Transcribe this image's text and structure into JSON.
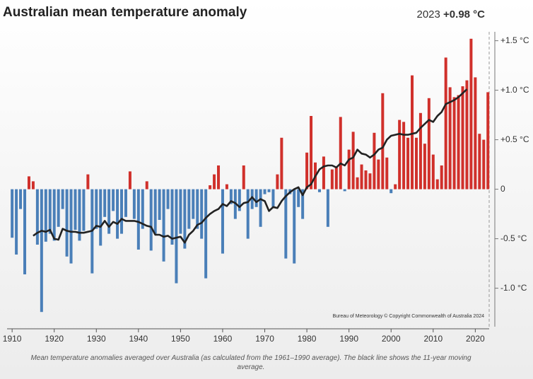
{
  "chart_data": {
    "type": "bar",
    "title": "Australian mean temperature anomaly",
    "latest_year_label": "2023",
    "latest_value_label": "+0.98 °C",
    "source": "Bureau of Meteorology © Copyright Commonwealth of Australia 2024",
    "caption": "Mean temperature anomalies averaged over Australia (as calculated from the 1961–1990 average). The black line shows the 11-year moving average.",
    "x": [
      1910,
      1911,
      1912,
      1913,
      1914,
      1915,
      1916,
      1917,
      1918,
      1919,
      1920,
      1921,
      1922,
      1923,
      1924,
      1925,
      1926,
      1927,
      1928,
      1929,
      1930,
      1931,
      1932,
      1933,
      1934,
      1935,
      1936,
      1937,
      1938,
      1939,
      1940,
      1941,
      1942,
      1943,
      1944,
      1945,
      1946,
      1947,
      1948,
      1949,
      1950,
      1951,
      1952,
      1953,
      1954,
      1955,
      1956,
      1957,
      1958,
      1959,
      1960,
      1961,
      1962,
      1963,
      1964,
      1965,
      1966,
      1967,
      1968,
      1969,
      1970,
      1971,
      1972,
      1973,
      1974,
      1975,
      1976,
      1977,
      1978,
      1979,
      1980,
      1981,
      1982,
      1983,
      1984,
      1985,
      1986,
      1987,
      1988,
      1989,
      1990,
      1991,
      1992,
      1993,
      1994,
      1995,
      1996,
      1997,
      1998,
      1999,
      2000,
      2001,
      2002,
      2003,
      2004,
      2005,
      2006,
      2007,
      2008,
      2009,
      2010,
      2011,
      2012,
      2013,
      2014,
      2015,
      2016,
      2017,
      2018,
      2019,
      2020,
      2021,
      2022,
      2023
    ],
    "values": [
      -0.49,
      -0.66,
      -0.2,
      -0.86,
      0.13,
      0.08,
      -0.56,
      -1.24,
      -0.53,
      -0.45,
      -0.52,
      -0.38,
      -0.2,
      -0.68,
      -0.75,
      -0.41,
      -0.52,
      -0.42,
      0.15,
      -0.85,
      -0.4,
      -0.57,
      -0.28,
      -0.45,
      -0.22,
      -0.5,
      -0.45,
      -0.28,
      0.18,
      -0.3,
      -0.61,
      -0.4,
      0.08,
      -0.62,
      -0.45,
      -0.31,
      -0.73,
      -0.2,
      -0.56,
      -0.95,
      -0.45,
      -0.6,
      -0.4,
      -0.3,
      -0.4,
      -0.5,
      -0.9,
      0.04,
      0.15,
      0.24,
      -0.65,
      0.05,
      -0.15,
      -0.3,
      -0.22,
      0.24,
      -0.5,
      -0.2,
      -0.18,
      -0.38,
      -0.05,
      -0.03,
      -0.18,
      0.15,
      0.52,
      -0.7,
      -0.05,
      -0.75,
      -0.18,
      -0.3,
      0.37,
      0.74,
      0.27,
      -0.03,
      0.33,
      -0.38,
      0.2,
      0.22,
      0.73,
      -0.02,
      0.4,
      0.58,
      0.12,
      0.25,
      0.19,
      0.16,
      0.57,
      0.3,
      0.97,
      0.32,
      -0.04,
      0.05,
      0.7,
      0.68,
      0.52,
      1.15,
      0.52,
      0.77,
      0.46,
      0.92,
      0.35,
      0.1,
      0.24,
      1.33,
      1.03,
      0.93,
      0.95,
      1.04,
      1.1,
      1.52,
      1.13,
      0.56,
      0.5,
      0.98
    ],
    "moving_average": [
      null,
      null,
      null,
      null,
      null,
      -0.47,
      -0.44,
      -0.42,
      -0.43,
      -0.41,
      -0.5,
      -0.51,
      -0.4,
      -0.42,
      -0.43,
      -0.43,
      -0.44,
      -0.44,
      -0.43,
      -0.42,
      -0.37,
      -0.38,
      -0.32,
      -0.38,
      -0.33,
      -0.35,
      -0.3,
      -0.32,
      -0.32,
      -0.32,
      -0.33,
      -0.35,
      -0.37,
      -0.38,
      -0.46,
      -0.46,
      -0.48,
      -0.47,
      -0.5,
      -0.49,
      -0.48,
      -0.54,
      -0.46,
      -0.42,
      -0.36,
      -0.34,
      -0.29,
      -0.25,
      -0.22,
      -0.2,
      -0.15,
      -0.17,
      -0.12,
      -0.14,
      -0.18,
      -0.14,
      -0.13,
      -0.08,
      -0.13,
      -0.1,
      -0.12,
      -0.22,
      -0.18,
      -0.19,
      -0.12,
      -0.07,
      -0.03,
      0,
      0.02,
      -0.06,
      0.02,
      0.05,
      0.13,
      0.2,
      0.23,
      0.24,
      0.24,
      0.22,
      0.26,
      0.24,
      0.3,
      0.32,
      0.4,
      0.36,
      0.35,
      0.32,
      0.35,
      0.4,
      0.42,
      0.5,
      0.54,
      0.55,
      0.56,
      0.55,
      0.55,
      0.56,
      0.57,
      0.62,
      0.66,
      0.7,
      0.68,
      0.74,
      0.78,
      0.86,
      0.88,
      0.9,
      0.93,
      0.97,
      1.01,
      null,
      null,
      null,
      null,
      null
    ],
    "color_positive": "#d0302b",
    "color_negative": "#4a7fb8",
    "line_color": "#222222",
    "xlim": [
      1908.8,
      2023.8
    ],
    "xticks": [
      1910,
      1920,
      1930,
      1940,
      1950,
      1960,
      1970,
      1980,
      1990,
      2000,
      2010,
      2020
    ],
    "ylim": [
      -1.41,
      1.59
    ],
    "yticks": [
      {
        "value": 1.5,
        "label": "+1.5 °C"
      },
      {
        "value": 1.0,
        "label": "+1.0 °C"
      },
      {
        "value": 0.5,
        "label": "+0.5 °C"
      },
      0,
      {
        "value": -0.5,
        "label": "-0.5 °C"
      },
      {
        "value": -1.0,
        "label": "-1.0 °C"
      }
    ],
    "y_axis_side": "right"
  }
}
